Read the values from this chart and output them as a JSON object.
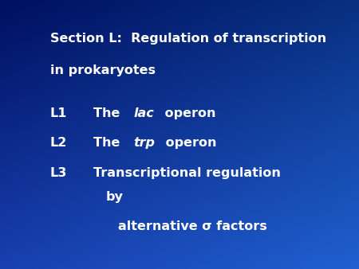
{
  "bg_color": "#1a3ab0",
  "bg_dark": "#001060",
  "text_color": "#ffffff",
  "title_line1": "Section L:  Regulation of transcription",
  "title_line2": "in prokaryotes",
  "title_fontsize": 11.5,
  "item_fontsize": 11.5,
  "items": [
    {
      "label": "L1",
      "prefix": "The ",
      "italic": "lac",
      "suffix": " operon",
      "indent": 0
    },
    {
      "label": "L2",
      "prefix": "The ",
      "italic": "trp",
      "suffix": " operon",
      "indent": 0
    },
    {
      "label": "L3",
      "prefix": "Transcriptional regulation",
      "italic": "",
      "suffix": "",
      "indent": 0
    },
    {
      "label": "",
      "prefix": "by",
      "italic": "",
      "suffix": "",
      "indent": 1
    },
    {
      "label": "",
      "prefix": "alternative σ factors",
      "italic": "",
      "suffix": "",
      "indent": 2
    }
  ]
}
